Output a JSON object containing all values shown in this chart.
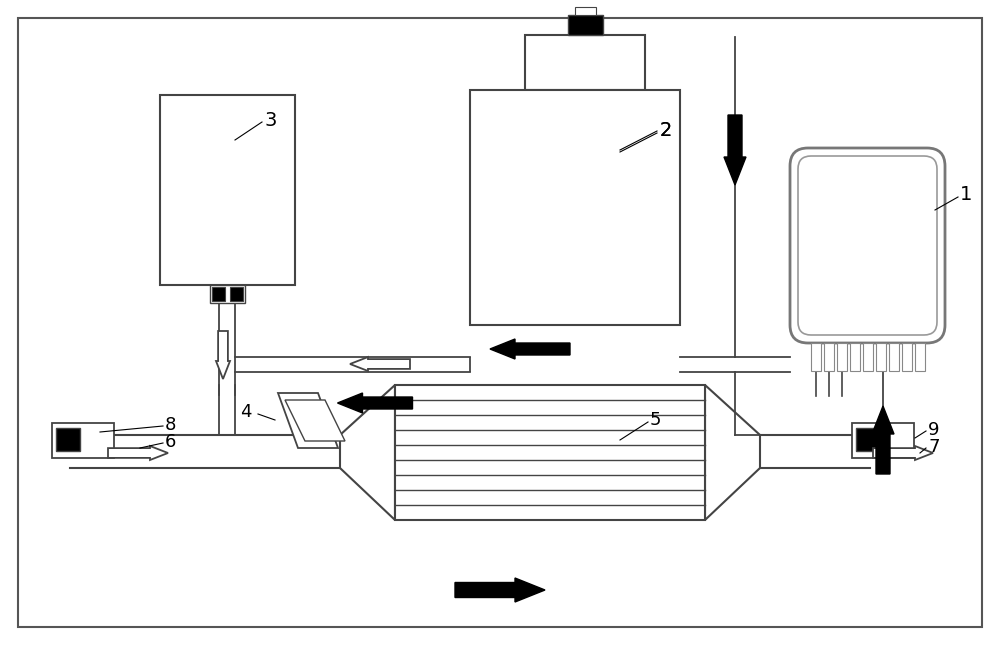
{
  "bg": "#ffffff",
  "lc": "#444444",
  "bk": "#000000",
  "fig_w": 10.0,
  "fig_h": 6.45,
  "dpi": 100
}
